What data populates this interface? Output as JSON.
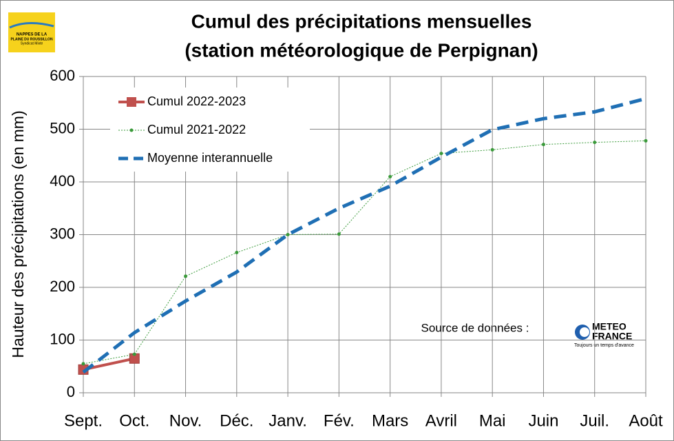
{
  "chart_data": {
    "type": "line",
    "title": [
      "Cumul des précipitations mensuelles",
      "(station météorologique de Perpignan)"
    ],
    "y_label": "Hauteur des précipitations (en mm)",
    "categories": [
      "Sept.",
      "Oct.",
      "Nov.",
      "Déc.",
      "Janv.",
      "Fév.",
      "Mars",
      "Avril",
      "Mai",
      "Juin",
      "Juil.",
      "Août"
    ],
    "series": [
      {
        "name": "Cumul 2022-2023",
        "color": "#c0504d",
        "values": [
          44,
          65,
          null,
          null,
          null,
          null,
          null,
          null,
          null,
          null,
          null,
          null
        ]
      },
      {
        "name": "Cumul 2021-2022",
        "color": "#3a9a3a",
        "values": [
          55,
          73,
          221,
          266,
          300,
          301,
          410,
          454,
          461,
          471,
          475,
          478
        ]
      },
      {
        "name": "Moyenne interannuelle",
        "color": "#1f6fb4",
        "values": [
          39,
          114,
          174,
          229,
          300,
          350,
          392,
          447,
          499,
          520,
          533,
          558
        ]
      }
    ],
    "ylim": [
      0,
      600
    ],
    "yticks": [
      0,
      100,
      200,
      300,
      400,
      500,
      600
    ],
    "grid": true,
    "legend": "upper left",
    "source_label": "Source de données :",
    "logo_left": [
      "NAPPES DE LA",
      "PLAINE DU ROUSSILLON",
      "Syndicat Mixte"
    ],
    "logo_right": [
      "METEO",
      "FRANCE",
      "Toujours un temps d'avance"
    ]
  }
}
